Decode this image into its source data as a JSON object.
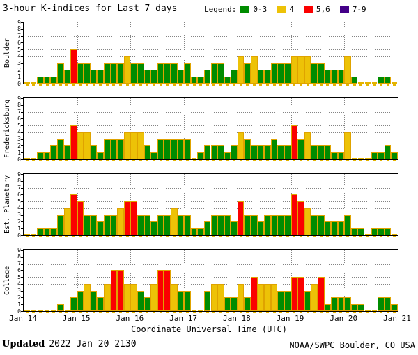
{
  "header": {
    "title": "3-hour K-indices for Last 7 days",
    "legend_label": "Legend:",
    "legend": [
      {
        "label": "0-3",
        "color": "#008c00"
      },
      {
        "label": "4",
        "color": "#edc207"
      },
      {
        "label": "5,6",
        "color": "#fb0000"
      },
      {
        "label": "7-9",
        "color": "#440088"
      }
    ]
  },
  "chart_data": {
    "type": "bar",
    "title": "3-hour K-indices for Last 7 days",
    "xlabel": "Coordinate Universal Time (UTC)",
    "x_tick_labels": [
      "Jan 14",
      "Jan 15",
      "Jan 16",
      "Jan 17",
      "Jan 18",
      "Jan 19",
      "Jan 20",
      "Jan 21"
    ],
    "ylim": [
      0,
      9
    ],
    "y_ticks": [
      9,
      8,
      7,
      6,
      5,
      4,
      3,
      2,
      1,
      0
    ],
    "dotted_y_gridlines": [
      7,
      5,
      4
    ],
    "bars_per_day": 8,
    "days": 7,
    "color_rules": {
      "0-3": "green",
      "4": "yellow",
      "5-6": "red",
      "7-9": "purple"
    },
    "colors": {
      "green": "#008c00",
      "yellow": "#edc207",
      "red": "#fb0000",
      "purple": "#440088",
      "outline": "#dfa300",
      "grid": "#848484"
    },
    "panels": [
      {
        "station": "Boulder",
        "values": [
          0,
          0,
          1,
          1,
          1,
          3,
          2,
          5,
          3,
          3,
          2,
          2,
          3,
          3,
          3,
          4,
          3,
          3,
          2,
          2,
          3,
          3,
          3,
          2,
          3,
          1,
          1,
          2,
          3,
          3,
          1,
          2,
          4,
          3,
          4,
          2,
          2,
          3,
          3,
          3,
          4,
          4,
          4,
          3,
          3,
          2,
          2,
          2,
          4,
          1,
          0,
          0,
          0,
          1,
          1,
          0
        ]
      },
      {
        "station": "Fredericksburg",
        "values": [
          0,
          0,
          1,
          1,
          2,
          3,
          2,
          5,
          4,
          4,
          2,
          1,
          3,
          3,
          3,
          4,
          4,
          4,
          2,
          1,
          3,
          3,
          3,
          3,
          3,
          0,
          1,
          2,
          2,
          2,
          1,
          2,
          4,
          3,
          2,
          2,
          2,
          3,
          2,
          2,
          5,
          3,
          4,
          2,
          2,
          2,
          1,
          1,
          4,
          0,
          0,
          0,
          1,
          1,
          2,
          1
        ]
      },
      {
        "station": "Est. Planetary",
        "values": [
          0,
          0,
          1,
          1,
          1,
          3,
          4,
          6,
          5,
          3,
          3,
          2,
          3,
          3,
          4,
          5,
          5,
          3,
          3,
          2,
          3,
          3,
          4,
          3,
          3,
          1,
          1,
          2,
          3,
          3,
          3,
          2,
          5,
          3,
          3,
          2,
          3,
          3,
          3,
          3,
          6,
          5,
          4,
          3,
          3,
          2,
          2,
          2,
          3,
          1,
          1,
          0,
          1,
          1,
          1,
          0
        ]
      },
      {
        "station": "College",
        "values": [
          0,
          0,
          0,
          0,
          0,
          1,
          0,
          2,
          3,
          4,
          3,
          2,
          4,
          6,
          6,
          4,
          4,
          3,
          2,
          4,
          6,
          6,
          4,
          3,
          3,
          0,
          0,
          3,
          4,
          4,
          2,
          2,
          4,
          2,
          5,
          4,
          4,
          4,
          3,
          3,
          5,
          5,
          3,
          4,
          5,
          1,
          2,
          2,
          2,
          1,
          1,
          0,
          0,
          2,
          2,
          1
        ]
      }
    ]
  },
  "footer": {
    "updated_label": "Updated",
    "updated_value": "2022 Jan 20 2130",
    "credit": "NOAA/SWPC Boulder, CO USA"
  }
}
